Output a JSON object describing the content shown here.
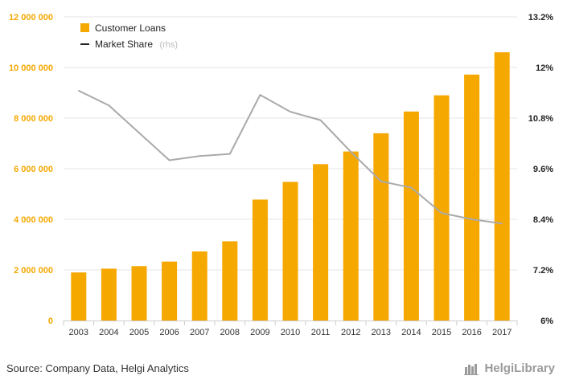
{
  "chart_data": {
    "type": "bar",
    "categories": [
      "2003",
      "2004",
      "2005",
      "2006",
      "2007",
      "2008",
      "2009",
      "2010",
      "2011",
      "2012",
      "2013",
      "2014",
      "2015",
      "2016",
      "2017"
    ],
    "series": [
      {
        "name": "Customer Loans",
        "type": "bar",
        "axis": "left",
        "color": "#f5a800",
        "values": [
          1900000,
          2050000,
          2150000,
          2330000,
          2730000,
          3130000,
          4780000,
          5480000,
          6180000,
          6680000,
          7400000,
          8260000,
          8900000,
          9720000,
          10600000
        ]
      },
      {
        "name": "Market Share",
        "type": "line",
        "axis": "right",
        "color": "#aaaaaa",
        "values": [
          11.45,
          11.1,
          10.45,
          9.8,
          9.9,
          9.95,
          11.35,
          10.95,
          10.75,
          10.0,
          9.3,
          9.15,
          8.55,
          8.4,
          8.3
        ]
      }
    ],
    "legend": {
      "bar_label": "Customer Loans",
      "line_label": "Market Share",
      "line_suffix": "(rhs)",
      "placement": "top-left"
    },
    "y_left": {
      "ylim": [
        0,
        12000000
      ],
      "ticks": [
        0,
        2000000,
        4000000,
        6000000,
        8000000,
        10000000,
        12000000
      ],
      "tick_labels": [
        "0",
        "2 000 000",
        "4 000 000",
        "6 000 000",
        "8 000 000",
        "10 000 000",
        "12 000 000"
      ],
      "color": "#f5a800"
    },
    "y_right": {
      "ylim": [
        6,
        13.2
      ],
      "ticks": [
        6,
        7.2,
        8.4,
        9.6,
        10.8,
        12,
        13.2
      ],
      "tick_labels": [
        "6%",
        "7.2%",
        "8.4%",
        "9.6%",
        "10.8%",
        "12%",
        "13.2%"
      ],
      "color": "#222222"
    },
    "grid": true
  },
  "footer": {
    "source": "Source: Company Data, Helgi Analytics",
    "brand": "HelgiLibrary"
  }
}
